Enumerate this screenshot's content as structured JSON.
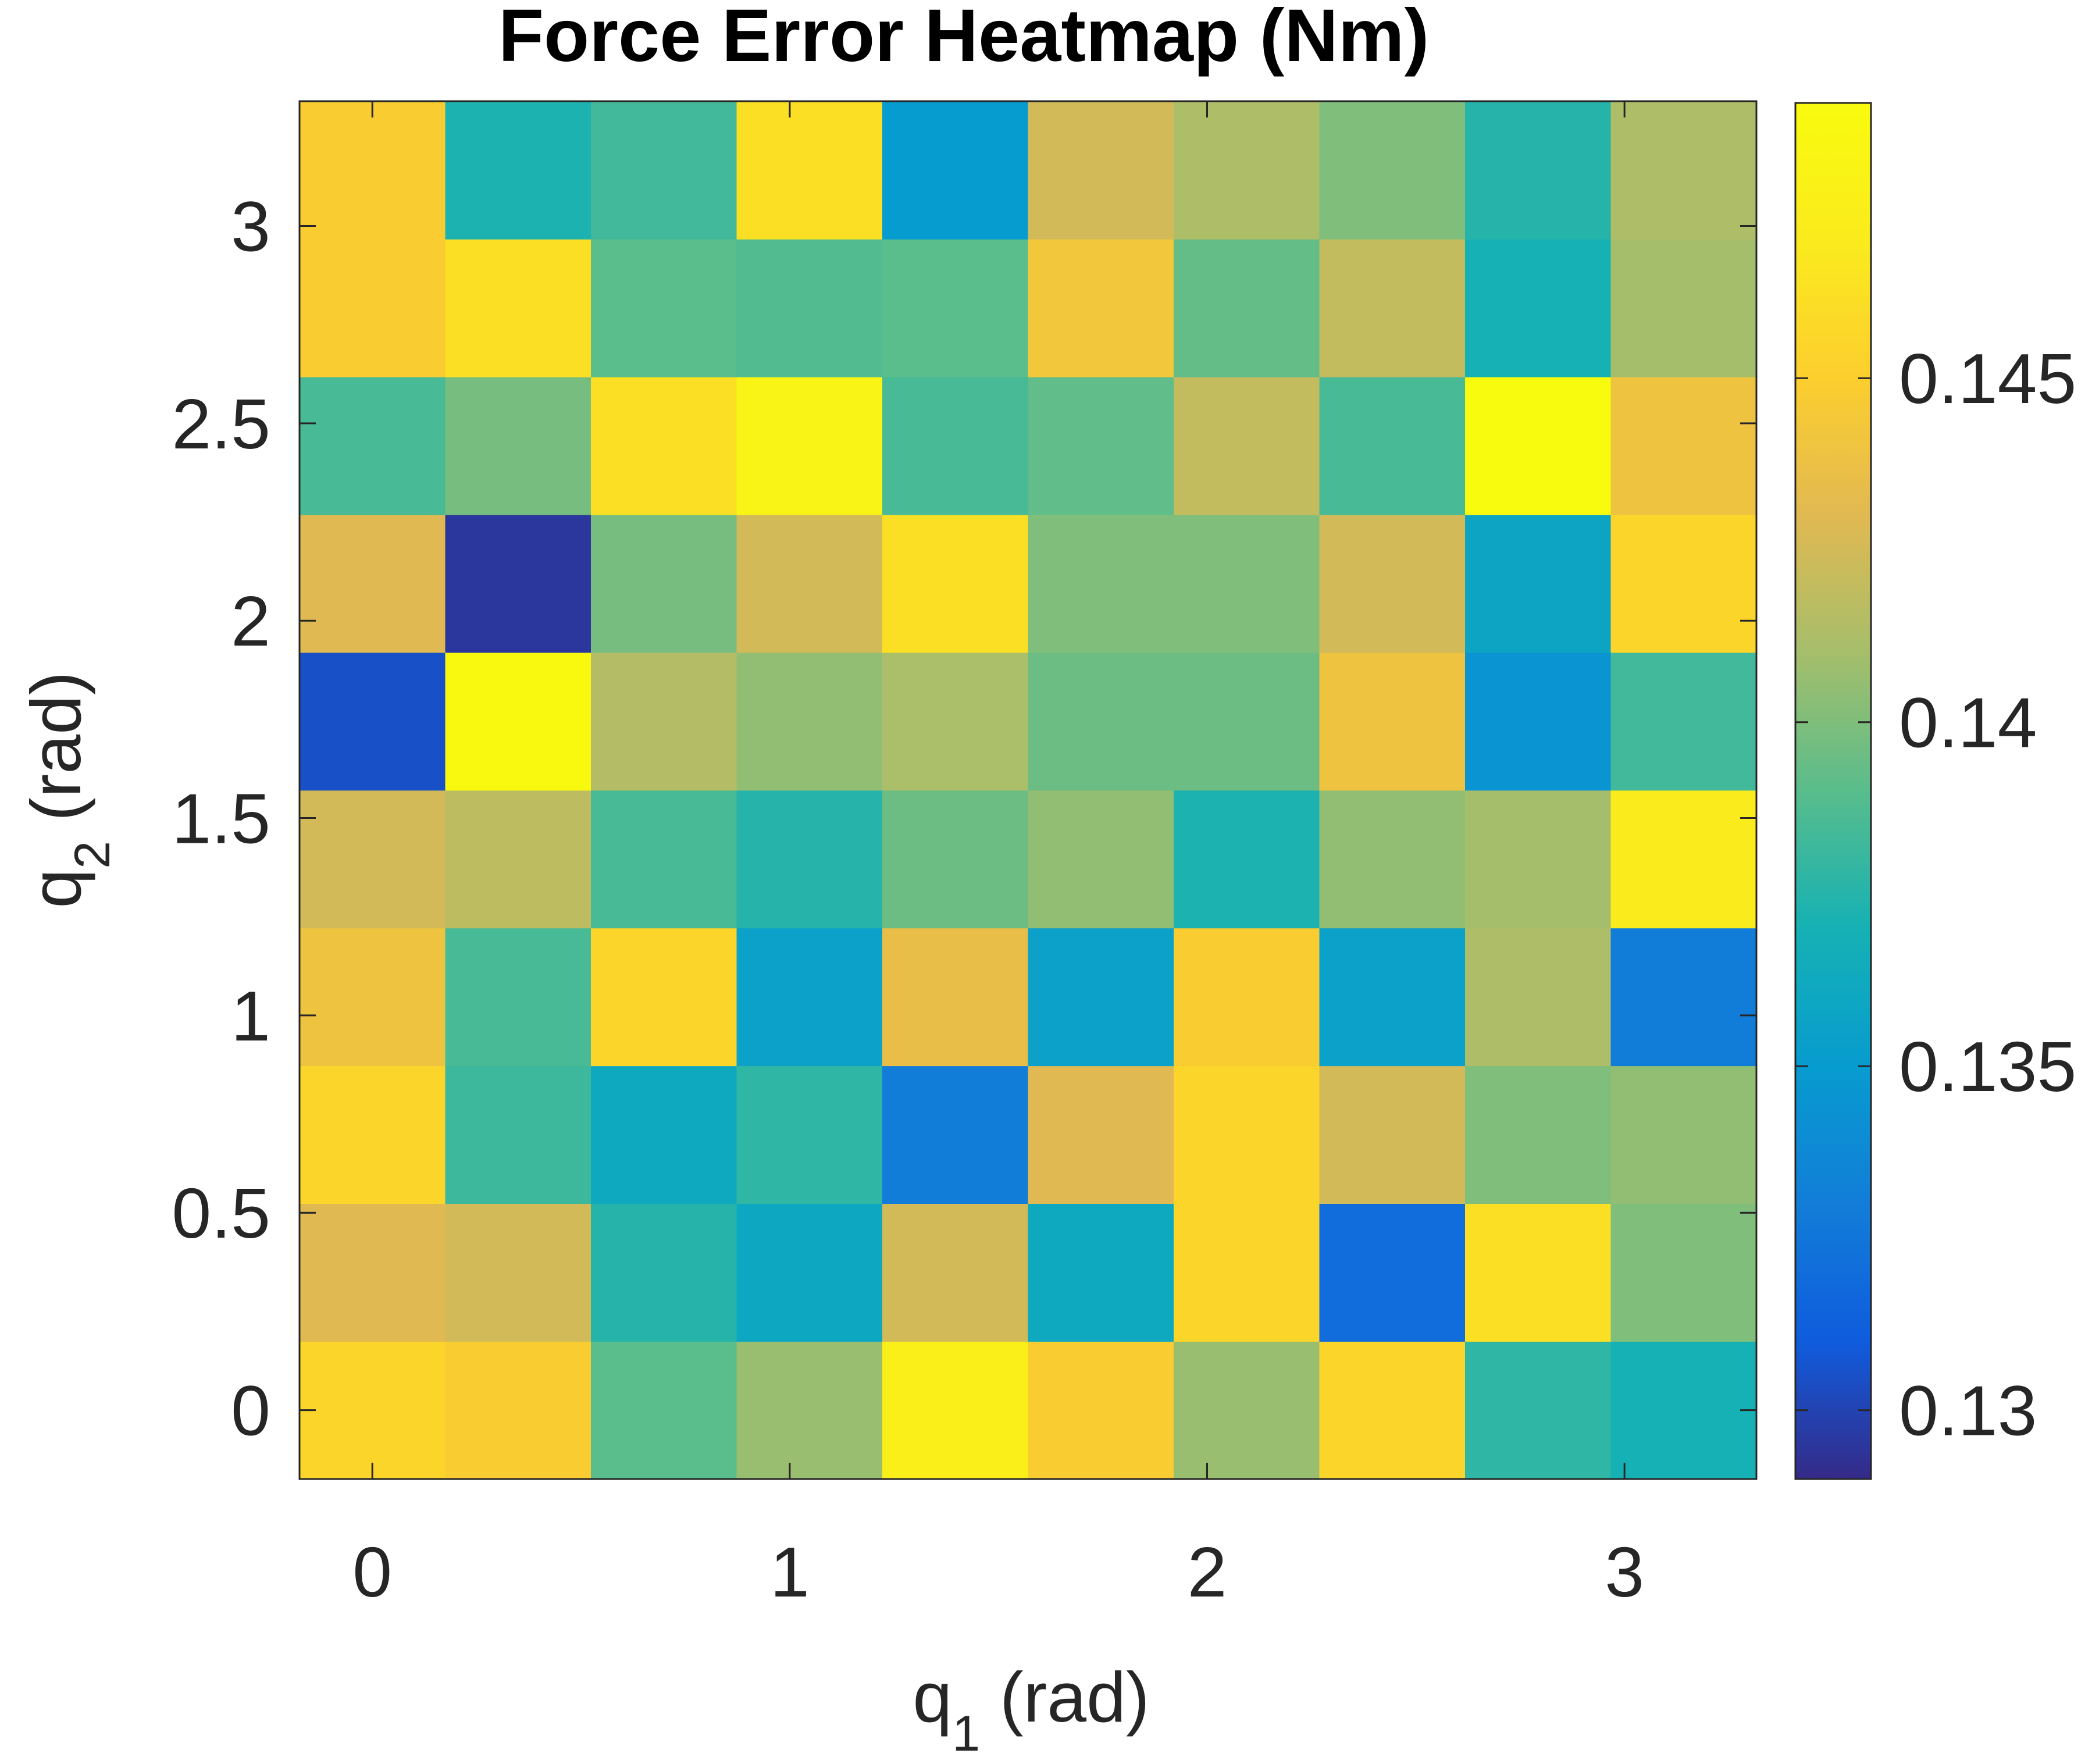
{
  "chart_data": {
    "type": "heatmap",
    "title": "Force Error Heatmap (Nm)",
    "xlabel": {
      "base": "q",
      "sub": "1",
      "suffix": " (rad)"
    },
    "ylabel": {
      "base": "q",
      "sub": "2",
      "suffix": " (rad)"
    },
    "x": [
      0,
      0.349,
      0.698,
      1.047,
      1.396,
      1.745,
      2.094,
      2.443,
      2.793,
      3.142
    ],
    "y": [
      0,
      0.349,
      0.698,
      1.047,
      1.396,
      1.745,
      2.094,
      2.443,
      2.793,
      3.142
    ],
    "xlim": [
      -0.1745,
      3.3161
    ],
    "ylim": [
      -0.1745,
      3.3161
    ],
    "xticks": [
      0,
      1,
      2,
      3
    ],
    "yticks": [
      0,
      0.5,
      1,
      1.5,
      2,
      2.5,
      3
    ],
    "ytick_labels": [
      "0",
      "0.5",
      "1",
      "1.5",
      "2",
      "2.5",
      "3"
    ],
    "xtick_labels": [
      "0",
      "1",
      "2",
      "3"
    ],
    "values_row_order": "first row is q2 = 0 (bottom), last row is q2 = 3.142 (top)",
    "values": [
      [
        0.1455,
        0.1448,
        0.139,
        0.1407,
        0.1475,
        0.1448,
        0.1407,
        0.1455,
        0.1378,
        0.137
      ],
      [
        0.143,
        0.1425,
        0.1375,
        0.136,
        0.1425,
        0.1362,
        0.1455,
        0.132,
        0.1462,
        0.14
      ],
      [
        0.1455,
        0.1382,
        0.1362,
        0.1378,
        0.133,
        0.143,
        0.1455,
        0.1425,
        0.14,
        0.1405
      ],
      [
        0.144,
        0.1385,
        0.1455,
        0.1355,
        0.1435,
        0.1355,
        0.1448,
        0.1355,
        0.1413,
        0.133
      ],
      [
        0.1425,
        0.1418,
        0.1385,
        0.1375,
        0.1395,
        0.1405,
        0.1372,
        0.1405,
        0.141,
        0.147
      ],
      [
        0.1305,
        0.1488,
        0.1415,
        0.1405,
        0.1412,
        0.1395,
        0.1395,
        0.144,
        0.1345,
        0.1383
      ],
      [
        0.143,
        0.1295,
        0.1398,
        0.1425,
        0.1462,
        0.14,
        0.14,
        0.1425,
        0.1358,
        0.1455
      ],
      [
        0.1385,
        0.1398,
        0.1462,
        0.148,
        0.1385,
        0.1392,
        0.142,
        0.1385,
        0.149,
        0.144
      ],
      [
        0.1448,
        0.1462,
        0.139,
        0.1388,
        0.139,
        0.1443,
        0.1393,
        0.142,
        0.137,
        0.141
      ],
      [
        0.1448,
        0.1372,
        0.1383,
        0.1462,
        0.135,
        0.1425,
        0.1413,
        0.14,
        0.1375,
        0.1413
      ]
    ],
    "colorbar": {
      "colormap": "parula",
      "range": [
        0.129,
        0.149
      ],
      "ticks": [
        0.13,
        0.135,
        0.14,
        0.145
      ],
      "tick_labels": [
        "0.13",
        "0.135",
        "0.14",
        "0.145"
      ]
    },
    "grid": false
  }
}
